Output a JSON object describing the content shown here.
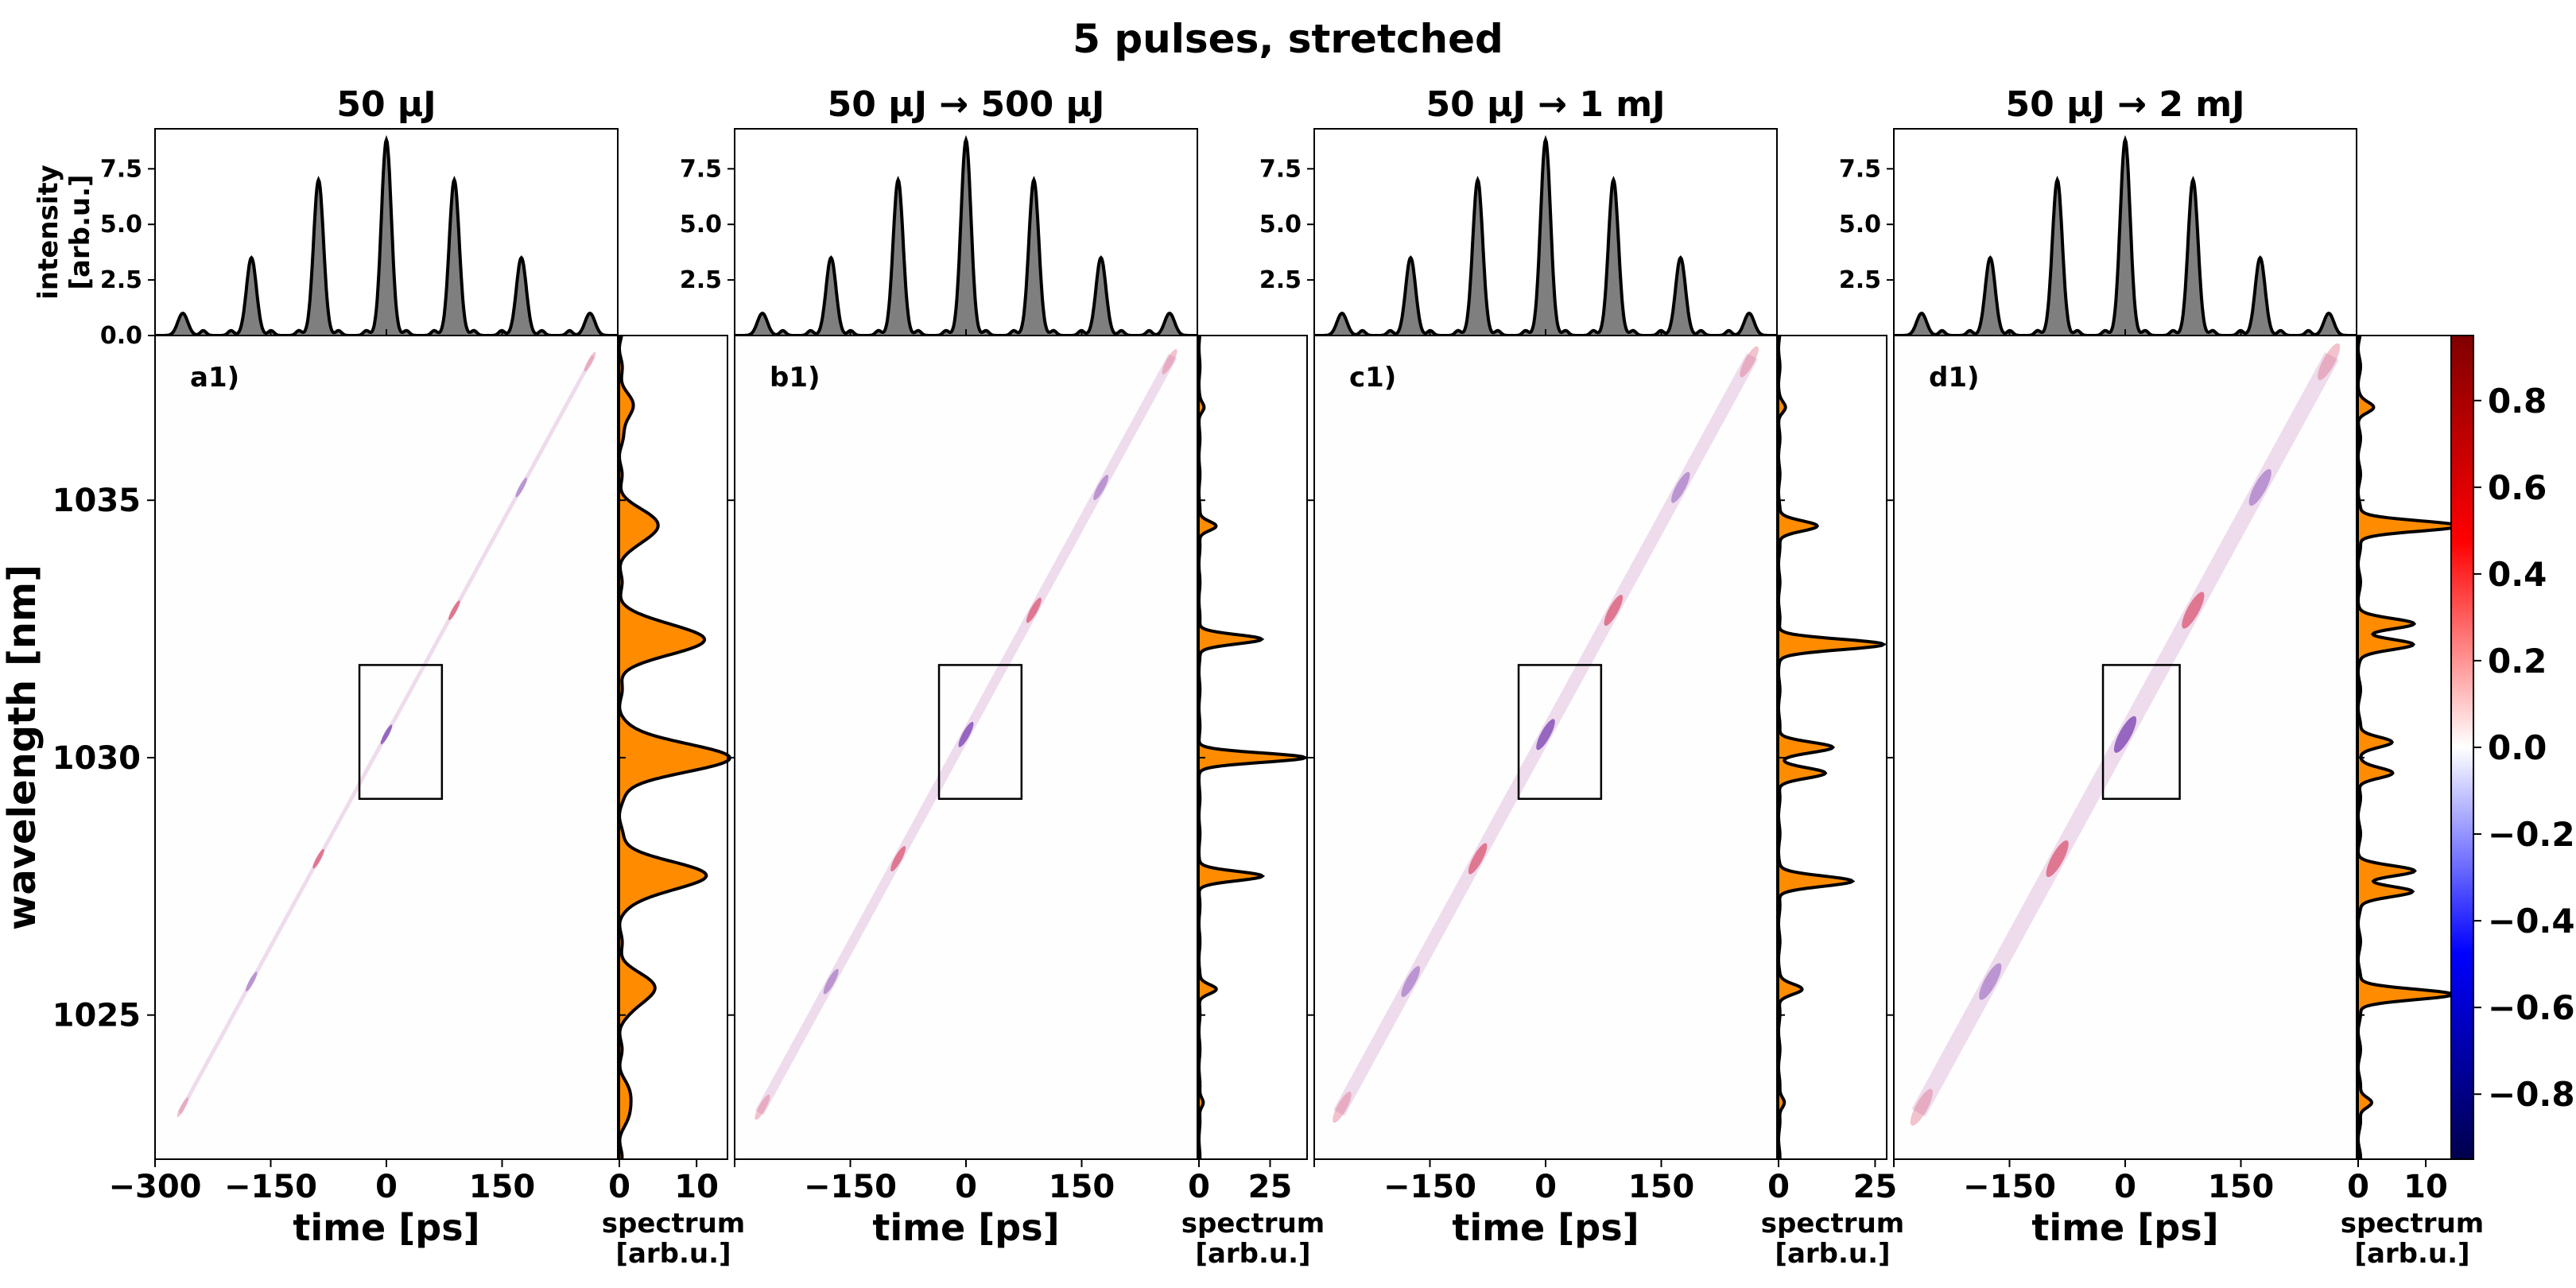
{
  "figure": {
    "suptitle": "5 pulses, stretched"
  },
  "chart_data": {
    "type": "heatmap",
    "shared": {
      "time_axis": {
        "label": "time [ps]",
        "lim": [
          -300,
          300
        ],
        "ticks": [
          -300,
          -150,
          0,
          150
        ]
      },
      "wavelength_axis": {
        "label": "wavelength [nm]",
        "lim": [
          1022.2,
          1038.2
        ],
        "ticks": [
          1025,
          1030,
          1035
        ]
      },
      "intensity_axis": {
        "label": "intensity\n[arb.u.]",
        "lim": [
          0,
          9.3
        ]
      },
      "spectrum_axis_label": "spectrum\n[arb.u.]",
      "colorbar": {
        "lim": [
          -0.95,
          0.95
        ],
        "ticks": [
          -0.8,
          -0.6,
          -0.4,
          -0.2,
          0.0,
          0.2,
          0.4,
          0.6,
          0.8
        ],
        "colormap": "seismic (blue-white-red)"
      },
      "pulse_intensity": {
        "type": "area",
        "x": [
          -264,
          -175,
          -88,
          0,
          88,
          175,
          264
        ],
        "values": [
          1.0,
          3.5,
          7.0,
          8.8,
          7.0,
          3.5,
          1.0
        ]
      },
      "chirp_line": {
        "from": [
          -268,
          1023.1
        ],
        "to": [
          268,
          1037.8
        ]
      },
      "inset_box": {
        "time": [
          -35,
          72
        ],
        "wavelength": [
          1029.2,
          1031.8
        ]
      },
      "fill_colors": {
        "intensity": "#7f7f7f",
        "spectrum": "#ff8c00"
      }
    },
    "panels": [
      {
        "title": "50 μJ",
        "label": "a1)",
        "intensity_ticks": [
          0.0,
          2.5,
          5.0,
          7.5
        ],
        "spectrum_xlim": [
          0,
          14
        ],
        "spectrum_ticks": [
          0,
          10
        ],
        "spectrum_peaks": [
          {
            "wavelength": 1023.3,
            "value": 1.5
          },
          {
            "wavelength": 1025.5,
            "value": 4.5
          },
          {
            "wavelength": 1027.7,
            "value": 11.0
          },
          {
            "wavelength": 1030.0,
            "value": 14.0
          },
          {
            "wavelength": 1032.3,
            "value": 11.0
          },
          {
            "wavelength": 1034.5,
            "value": 5.0
          },
          {
            "wavelength": 1036.8,
            "value": 1.5
          }
        ]
      },
      {
        "title": "50 μJ → 500 μJ",
        "label": "b1)",
        "intensity_ticks": [
          2.5,
          5.0,
          7.5
        ],
        "spectrum_xlim": [
          0,
          38
        ],
        "spectrum_ticks": [
          0,
          25
        ],
        "spectrum_peaks": [
          {
            "wavelength": 1023.3,
            "value": 1.5
          },
          {
            "wavelength": 1025.5,
            "value": 6.0
          },
          {
            "wavelength": 1027.7,
            "value": 22.0
          },
          {
            "wavelength": 1030.0,
            "value": 37.0
          },
          {
            "wavelength": 1032.3,
            "value": 22.0
          },
          {
            "wavelength": 1034.5,
            "value": 6.0
          },
          {
            "wavelength": 1036.8,
            "value": 1.5
          }
        ]
      },
      {
        "title": "50 μJ → 1 mJ",
        "label": "c1)",
        "intensity_ticks": [
          2.5,
          5.0,
          7.5
        ],
        "spectrum_xlim": [
          0,
          28
        ],
        "spectrum_ticks": [
          0,
          25
        ],
        "spectrum_peaks": [
          {
            "wavelength": 1023.3,
            "value": 1.5
          },
          {
            "wavelength": 1025.5,
            "value": 6.0
          },
          {
            "wavelength": 1027.6,
            "value": 19.0
          },
          {
            "wavelength": 1029.7,
            "value": 12.0
          },
          {
            "wavelength": 1030.2,
            "value": 14.0
          },
          {
            "wavelength": 1032.2,
            "value": 27.0
          },
          {
            "wavelength": 1034.5,
            "value": 10.0
          },
          {
            "wavelength": 1036.8,
            "value": 1.5
          }
        ]
      },
      {
        "title": "50 μJ → 2 mJ",
        "label": "d1)",
        "intensity_ticks": [
          2.5,
          5.0,
          7.5
        ],
        "spectrum_xlim": [
          0,
          16
        ],
        "spectrum_ticks": [
          0,
          10
        ],
        "spectrum_peaks": [
          {
            "wavelength": 1023.3,
            "value": 2.0
          },
          {
            "wavelength": 1025.4,
            "value": 14.0
          },
          {
            "wavelength": 1027.4,
            "value": 8.0
          },
          {
            "wavelength": 1027.8,
            "value": 8.0
          },
          {
            "wavelength": 1029.7,
            "value": 5.0
          },
          {
            "wavelength": 1030.3,
            "value": 5.0
          },
          {
            "wavelength": 1032.2,
            "value": 8.0
          },
          {
            "wavelength": 1032.6,
            "value": 8.0
          },
          {
            "wavelength": 1034.5,
            "value": 15.0
          },
          {
            "wavelength": 1036.8,
            "value": 2.0
          }
        ]
      }
    ]
  }
}
